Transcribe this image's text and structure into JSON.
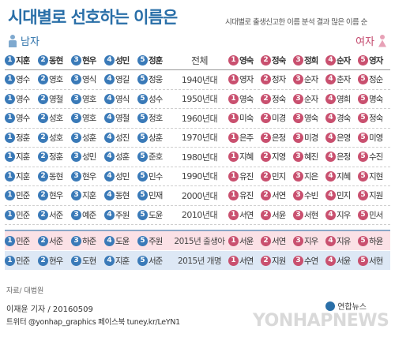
{
  "title": "시대별로 선호하는 이름은",
  "subtitle": "시대별로 출생신고한 이름 분석 결과 많은 이름 순",
  "male_label": "남자",
  "female_label": "여자",
  "header": {
    "boys": [
      "지훈",
      "동현",
      "현우",
      "성민",
      "정훈"
    ],
    "center": "전체",
    "girls": [
      "영숙",
      "정숙",
      "정희",
      "순자",
      "영자"
    ]
  },
  "rows": [
    {
      "era": "1940년대",
      "boys": [
        "영수",
        "영호",
        "영식",
        "영길",
        "정웅"
      ],
      "girls": [
        "영자",
        "정자",
        "순자",
        "춘자",
        "정순"
      ]
    },
    {
      "era": "1950년대",
      "boys": [
        "영수",
        "영철",
        "영호",
        "영식",
        "성수"
      ],
      "girls": [
        "영숙",
        "정숙",
        "순자",
        "영희",
        "명숙"
      ]
    },
    {
      "era": "1960년대",
      "boys": [
        "영수",
        "성호",
        "영호",
        "영철",
        "정호"
      ],
      "girls": [
        "미숙",
        "미경",
        "영숙",
        "경숙",
        "정숙"
      ]
    },
    {
      "era": "1970년대",
      "boys": [
        "정훈",
        "성호",
        "성훈",
        "성진",
        "상훈"
      ],
      "girls": [
        "은주",
        "은정",
        "미경",
        "은영",
        "미영"
      ]
    },
    {
      "era": "1980년대",
      "boys": [
        "지훈",
        "정훈",
        "성민",
        "성훈",
        "준호"
      ],
      "girls": [
        "지혜",
        "지영",
        "혜진",
        "은정",
        "수진"
      ]
    },
    {
      "era": "1990년대",
      "boys": [
        "지훈",
        "동현",
        "현우",
        "성민",
        "민수"
      ],
      "girls": [
        "유진",
        "민지",
        "지은",
        "지혜",
        "지현"
      ]
    },
    {
      "era": "2000년대",
      "boys": [
        "민준",
        "현우",
        "지훈",
        "동현",
        "민재"
      ],
      "girls": [
        "유진",
        "서연",
        "수빈",
        "민지",
        "지원"
      ]
    },
    {
      "era": "2010년대",
      "boys": [
        "민준",
        "서준",
        "예준",
        "주원",
        "도윤"
      ],
      "girls": [
        "서연",
        "서윤",
        "서현",
        "지우",
        "민서"
      ]
    }
  ],
  "highlight": [
    {
      "era": "2015년 출생아",
      "boys": [
        "민준",
        "서준",
        "하준",
        "도윤",
        "주원"
      ],
      "girls": [
        "서윤",
        "서연",
        "지우",
        "지유",
        "하윤"
      ]
    },
    {
      "era": "2015년 개명",
      "boys": [
        "민준",
        "현우",
        "도현",
        "지훈",
        "서준"
      ],
      "girls": [
        "서연",
        "지원",
        "수연",
        "서윤",
        "서현"
      ]
    }
  ],
  "source": "자료/ 대법원",
  "credit": "이재윤 기자 / 20160509",
  "social": "트위터 @yonhap_graphics  페이스북 tuney.kr/LeYN1",
  "logo": "연합뉴스",
  "watermark": "YONHAPNEWS"
}
